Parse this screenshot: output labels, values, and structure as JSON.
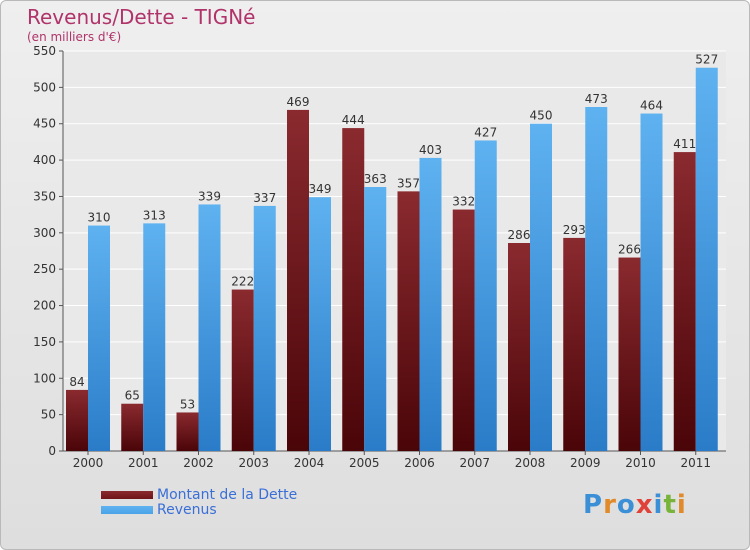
{
  "chart_data": {
    "type": "bar",
    "title": "Revenus/Dette - TIGNé",
    "subtitle": "(en milliers d'€)",
    "categories": [
      "2000",
      "2001",
      "2002",
      "2003",
      "2004",
      "2005",
      "2006",
      "2007",
      "2008",
      "2009",
      "2010",
      "2011"
    ],
    "series": [
      {
        "name": "Montant de la Dette",
        "color": "#6e1418",
        "values": [
          84,
          65,
          53,
          222,
          469,
          444,
          357,
          332,
          286,
          293,
          266,
          411
        ]
      },
      {
        "name": "Revenus",
        "color": "#4aa3e8",
        "values": [
          310,
          313,
          339,
          337,
          349,
          363,
          403,
          427,
          450,
          473,
          464,
          527
        ]
      }
    ],
    "ylim": [
      0,
      550
    ],
    "yticks": [
      0,
      50,
      100,
      150,
      200,
      250,
      300,
      350,
      400,
      450,
      500,
      550
    ],
    "grid": true,
    "legend_position": "bottom-left"
  },
  "logo": {
    "text": "Proxiti",
    "letter_colors": [
      "#3b8fd6",
      "#e08a2a",
      "#3b8fd6",
      "#e0423a",
      "#3b8fd6",
      "#79b43a",
      "#e08a2a"
    ]
  }
}
